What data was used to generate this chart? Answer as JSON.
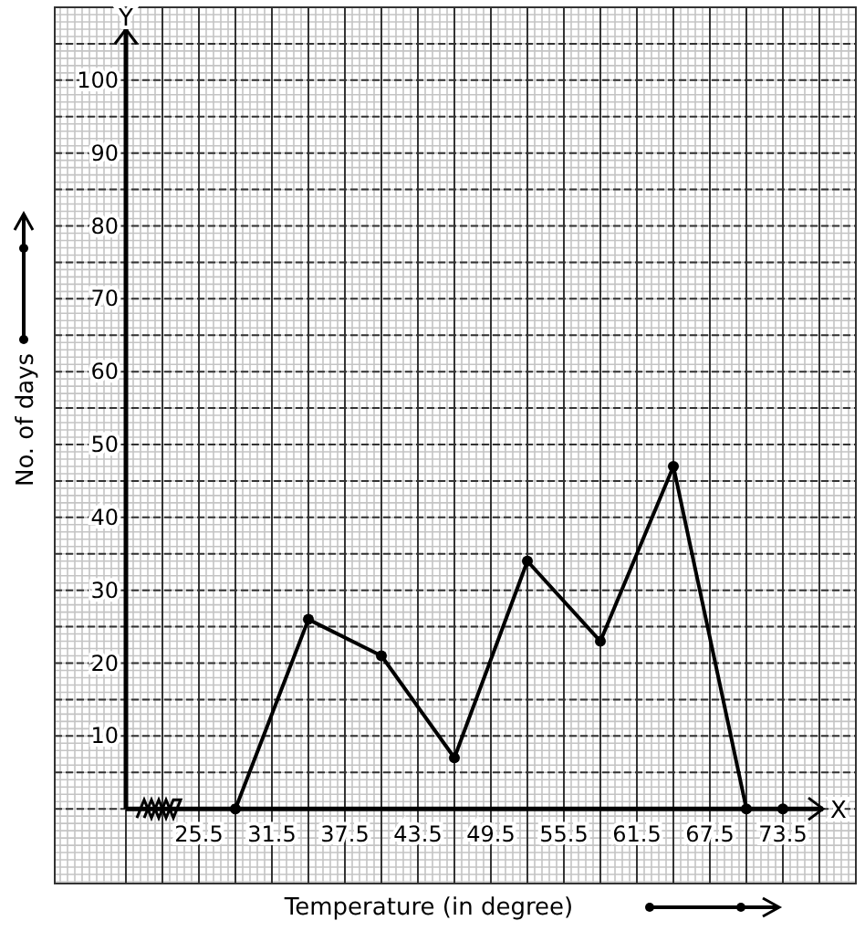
{
  "chart_data": {
    "type": "line",
    "xlabel": "Temperature (in degree)",
    "ylabel": "No. of days",
    "annotations": [
      "X",
      "Y"
    ],
    "xlim": [
      13.65,
      79.5
    ],
    "ylim": [
      -10.25,
      110
    ],
    "xticks": [
      {
        "value": 19.5,
        "label": null
      },
      {
        "value": 22.5,
        "label": null
      },
      25.5,
      {
        "value": 28.5,
        "label": null
      },
      31.5,
      {
        "value": 34.5,
        "label": null
      },
      37.5,
      {
        "value": 40.5,
        "label": null
      },
      43.5,
      {
        "value": 46.5,
        "label": null
      },
      49.5,
      {
        "value": 52.5,
        "label": null
      },
      55.5,
      {
        "value": 58.5,
        "label": null
      },
      61.5,
      {
        "value": 64.5,
        "label": null
      },
      67.5,
      {
        "value": 70.5,
        "label": null
      },
      73.5,
      {
        "value": 76.5,
        "label": null
      }
    ],
    "yticks": [
      {
        "value": 0,
        "label": null
      },
      {
        "value": 5,
        "label": null
      },
      10,
      {
        "value": 15,
        "label": null
      },
      20,
      {
        "value": 25,
        "label": null
      },
      30,
      {
        "value": 35,
        "label": null
      },
      40,
      {
        "value": 45,
        "label": null
      },
      50,
      {
        "value": 55,
        "label": null
      },
      60,
      {
        "value": 65,
        "label": null
      },
      70,
      {
        "value": 75,
        "label": null
      },
      80,
      {
        "value": 85,
        "label": null
      },
      90,
      {
        "value": 95,
        "label": null
      },
      100,
      {
        "value": 105,
        "label": null
      }
    ],
    "grid": true,
    "marker": "circle",
    "line_style": "solid",
    "series": [
      {
        "color": "#000000",
        "x": [
          28.5,
          34.5,
          40.5,
          46.5,
          52.5,
          58.5,
          64.5,
          70.5
        ],
        "values": [
          0,
          26,
          21,
          7,
          34,
          23,
          47,
          0
        ]
      },
      {
        "type": "scatter",
        "color": "#000000",
        "x": [
          73.5
        ],
        "values": [
          0
        ]
      }
    ]
  }
}
